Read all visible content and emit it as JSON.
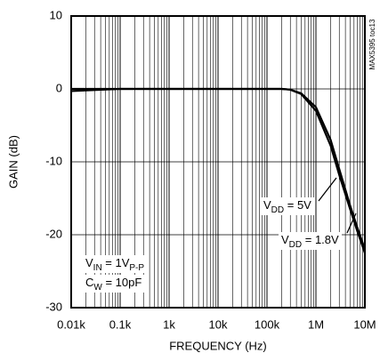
{
  "chart_data": {
    "type": "line",
    "x_label": "FREQUENCY (Hz)",
    "y_label": "GAIN (dB)",
    "side_note": "MAX5395 toc13",
    "x_scale": "log",
    "grid": true,
    "minor_grid": true,
    "xlim": [
      10,
      10000000
    ],
    "ylim": [
      -30,
      10
    ],
    "xticks": [
      {
        "value": 10,
        "label": "0.01k"
      },
      {
        "value": 100,
        "label": "0.1k"
      },
      {
        "value": 1000,
        "label": "1k"
      },
      {
        "value": 10000,
        "label": "10k"
      },
      {
        "value": 100000,
        "label": "100k"
      },
      {
        "value": 1000000,
        "label": "1M"
      },
      {
        "value": 10000000,
        "label": "10M"
      }
    ],
    "yticks": [
      10,
      0,
      -10,
      -20,
      -30
    ],
    "x": [
      10,
      100,
      1000,
      10000,
      100000,
      200000,
      300000,
      500000,
      1000000,
      2000000,
      3000000,
      5000000,
      7000000,
      10000000
    ],
    "series": [
      {
        "name": {
          "v": "V",
          "sub": "DD",
          "rest": " = 5V"
        },
        "color": "#000000",
        "values": [
          0,
          0,
          0,
          0,
          0,
          0,
          -0.1,
          -0.6,
          -2.5,
          -7,
          -11,
          -16,
          -19,
          -22
        ]
      },
      {
        "name": {
          "v": "V",
          "sub": "DD",
          "rest": " = 1.8V"
        },
        "color": "#000000",
        "values": [
          -0.3,
          0,
          0,
          0,
          0,
          0,
          -0.1,
          -0.7,
          -3,
          -7.8,
          -11.8,
          -16.5,
          -19.5,
          -22.5
        ]
      }
    ],
    "conditions": [
      {
        "v": "V",
        "sub": "IN",
        "rest": " = 1V",
        "sub2": "P-P"
      },
      {
        "v": "C",
        "sub": "W",
        "rest": " = 10pF"
      }
    ]
  }
}
